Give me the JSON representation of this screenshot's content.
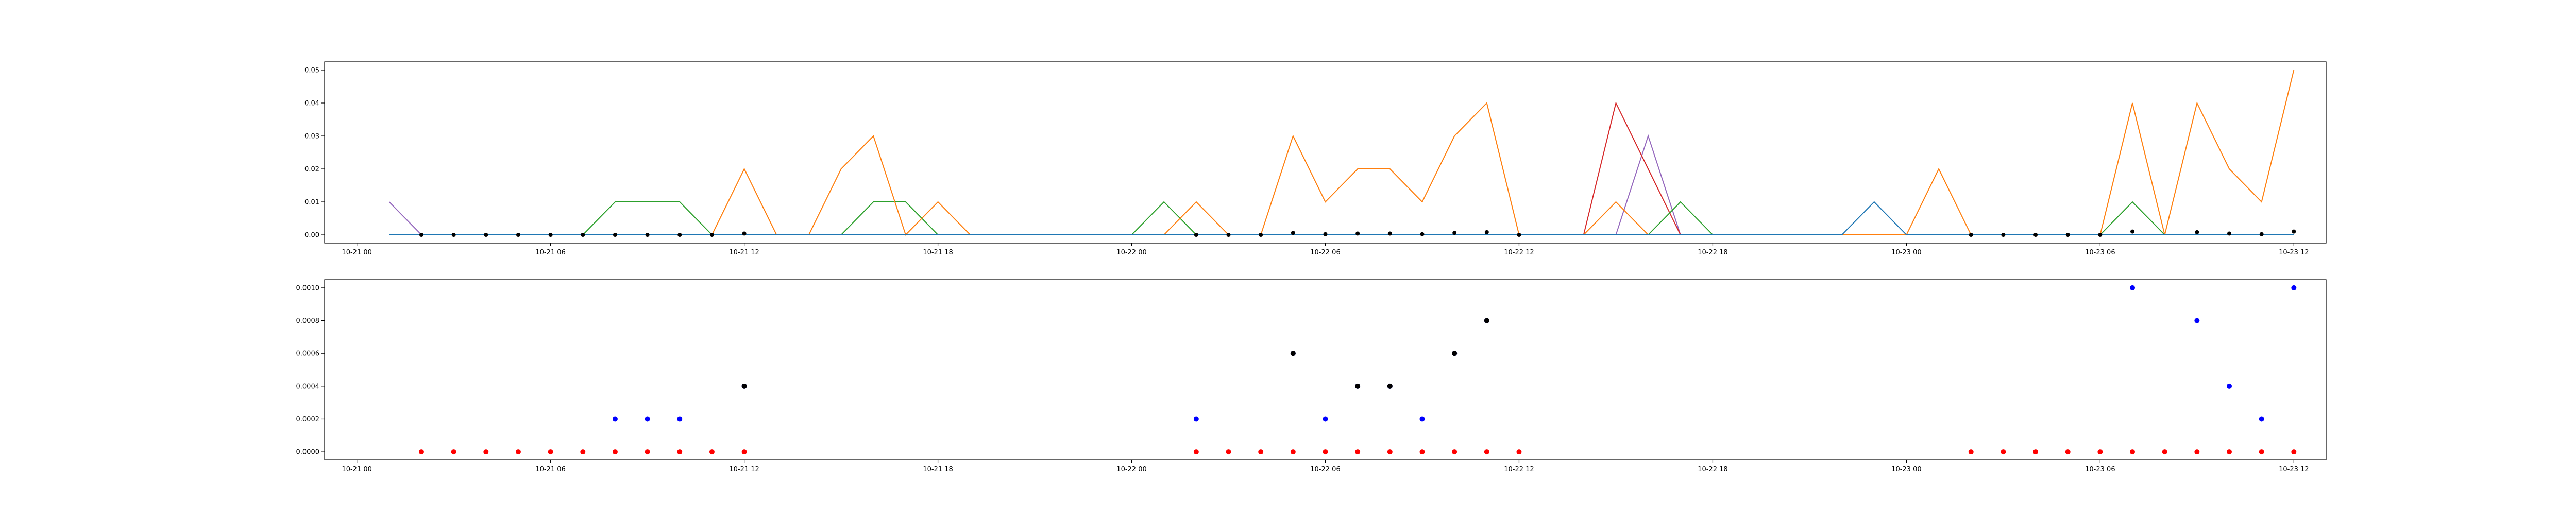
{
  "chart_data": [
    {
      "type": "line",
      "title": "",
      "xlabel": "",
      "ylabel": "",
      "x_range": [
        "2024-10-20 23:00",
        "2024-10-23 13:00"
      ],
      "ylim": [
        -0.0025,
        0.0525
      ],
      "grid": false,
      "x_ticks": [
        "10-21 00",
        "10-21 06",
        "10-21 12",
        "10-21 18",
        "10-22 00",
        "10-22 06",
        "10-22 12",
        "10-22 18",
        "10-23 00",
        "10-23 06",
        "10-23 12"
      ],
      "x_tick_times": [
        "2024-10-21 00:00",
        "2024-10-21 06:00",
        "2024-10-21 12:00",
        "2024-10-21 18:00",
        "2024-10-22 00:00",
        "2024-10-22 06:00",
        "2024-10-22 12:00",
        "2024-10-22 18:00",
        "2024-10-23 00:00",
        "2024-10-23 06:00",
        "2024-10-23 12:00"
      ],
      "y_ticks": [
        "0.00",
        "0.01",
        "0.02",
        "0.03",
        "0.04",
        "0.05"
      ],
      "y_tick_values": [
        0,
        0.01,
        0.02,
        0.03,
        0.04,
        0.05
      ],
      "x": [
        "2024-10-21 01:00",
        "2024-10-21 02:00",
        "2024-10-21 03:00",
        "2024-10-21 04:00",
        "2024-10-21 05:00",
        "2024-10-21 06:00",
        "2024-10-21 07:00",
        "2024-10-21 08:00",
        "2024-10-21 09:00",
        "2024-10-21 10:00",
        "2024-10-21 11:00",
        "2024-10-21 12:00",
        "2024-10-21 13:00",
        "2024-10-21 14:00",
        "2024-10-21 15:00",
        "2024-10-21 16:00",
        "2024-10-21 17:00",
        "2024-10-21 18:00",
        "2024-10-21 19:00",
        "2024-10-21 20:00",
        "2024-10-21 21:00",
        "2024-10-21 22:00",
        "2024-10-21 23:00",
        "2024-10-22 00:00",
        "2024-10-22 01:00",
        "2024-10-22 02:00",
        "2024-10-22 03:00",
        "2024-10-22 04:00",
        "2024-10-22 05:00",
        "2024-10-22 06:00",
        "2024-10-22 07:00",
        "2024-10-22 08:00",
        "2024-10-22 09:00",
        "2024-10-22 10:00",
        "2024-10-22 11:00",
        "2024-10-22 12:00",
        "2024-10-22 13:00",
        "2024-10-22 14:00",
        "2024-10-22 15:00",
        "2024-10-22 16:00",
        "2024-10-22 17:00",
        "2024-10-22 18:00",
        "2024-10-22 19:00",
        "2024-10-22 20:00",
        "2024-10-22 21:00",
        "2024-10-22 22:00",
        "2024-10-22 23:00",
        "2024-10-23 00:00",
        "2024-10-23 01:00",
        "2024-10-23 02:00",
        "2024-10-23 03:00",
        "2024-10-23 04:00",
        "2024-10-23 05:00",
        "2024-10-23 06:00",
        "2024-10-23 07:00",
        "2024-10-23 08:00",
        "2024-10-23 09:00",
        "2024-10-23 10:00",
        "2024-10-23 11:00",
        "2024-10-23 12:00"
      ],
      "series": [
        {
          "color": "#1f77b4",
          "values": [
            0,
            0,
            0,
            0,
            0,
            0,
            0,
            0,
            0,
            0,
            0,
            0,
            0,
            0,
            0,
            0,
            0,
            0,
            0,
            0,
            0,
            0,
            0,
            0,
            0,
            0,
            0,
            0,
            0,
            0,
            0,
            0,
            0,
            0,
            0,
            0,
            0,
            0,
            0,
            0,
            0,
            0,
            0,
            0,
            0,
            0,
            0.01,
            0,
            0,
            0,
            0,
            0,
            0,
            0,
            0,
            0,
            0,
            0,
            0,
            0
          ]
        },
        {
          "color": "#ff7f0e",
          "values": [
            0,
            0,
            0,
            0,
            0,
            0,
            0,
            0,
            0,
            0,
            0,
            0.02,
            0,
            0,
            0.02,
            0.03,
            0,
            0.01,
            0,
            0,
            0,
            0,
            0,
            0,
            0,
            0.01,
            0,
            0,
            0.03,
            0.01,
            0.02,
            0.02,
            0.01,
            0.03,
            0.04,
            0,
            0,
            0,
            0.01,
            0,
            0,
            0,
            0,
            0,
            0,
            0,
            0,
            0,
            0.02,
            0,
            0,
            0,
            0,
            0,
            0.04,
            0,
            0.04,
            0.02,
            0.01,
            0.05
          ]
        },
        {
          "color": "#2ca02c",
          "values": [
            0,
            0,
            0,
            0,
            0,
            0,
            0,
            0.01,
            0.01,
            0.01,
            0,
            0,
            0,
            0,
            0,
            0.01,
            0.01,
            0,
            0,
            0,
            0,
            0,
            0,
            0,
            0.01,
            0,
            0,
            0,
            0,
            0,
            0,
            0,
            0,
            0,
            0,
            0,
            0,
            0,
            0,
            0,
            0.01,
            0,
            0,
            0,
            0,
            0,
            0,
            0,
            0,
            0,
            0,
            0,
            0,
            0,
            0.01,
            0,
            0,
            0,
            0,
            0
          ]
        },
        {
          "color": "#d62728",
          "values": [
            0,
            0,
            0,
            0,
            0,
            0,
            0,
            0,
            0,
            0,
            0,
            0,
            0,
            0,
            0,
            0,
            0,
            0,
            0,
            0,
            0,
            0,
            0,
            0,
            0,
            0,
            0,
            0,
            0,
            0,
            0,
            0,
            0,
            0,
            0,
            0,
            0,
            0,
            0.04,
            0.02,
            0,
            0,
            0,
            0,
            0,
            0,
            0,
            0,
            0,
            0,
            0,
            0,
            0,
            0,
            0,
            0,
            0,
            0,
            0,
            0
          ]
        },
        {
          "color": "#9467bd",
          "values": [
            0.01,
            0,
            0,
            0,
            0,
            0,
            0,
            0,
            0,
            0,
            0,
            0,
            0,
            0,
            0,
            0,
            0,
            0,
            0,
            0,
            0,
            0,
            0,
            0,
            0,
            0,
            0,
            0,
            0,
            0,
            0,
            0,
            0,
            0,
            0,
            0,
            0,
            0,
            0,
            0.03,
            0,
            0,
            0,
            0,
            0,
            0,
            0,
            0,
            0,
            0,
            0,
            0,
            0,
            0,
            0,
            0,
            0,
            0,
            0,
            0
          ]
        }
      ],
      "markers": {
        "color": "#000000",
        "points": [
          {
            "x": "2024-10-21 02:00",
            "y": 0
          },
          {
            "x": "2024-10-21 03:00",
            "y": 0
          },
          {
            "x": "2024-10-21 04:00",
            "y": 0
          },
          {
            "x": "2024-10-21 05:00",
            "y": 0
          },
          {
            "x": "2024-10-21 06:00",
            "y": 0
          },
          {
            "x": "2024-10-21 07:00",
            "y": 0
          },
          {
            "x": "2024-10-21 08:00",
            "y": 0
          },
          {
            "x": "2024-10-21 09:00",
            "y": 0
          },
          {
            "x": "2024-10-21 10:00",
            "y": 0
          },
          {
            "x": "2024-10-21 11:00",
            "y": 0
          },
          {
            "x": "2024-10-21 12:00",
            "y": 0.0004
          },
          {
            "x": "2024-10-22 02:00",
            "y": 0
          },
          {
            "x": "2024-10-22 03:00",
            "y": 0
          },
          {
            "x": "2024-10-22 04:00",
            "y": 0
          },
          {
            "x": "2024-10-22 05:00",
            "y": 0.0006
          },
          {
            "x": "2024-10-22 06:00",
            "y": 0.0002
          },
          {
            "x": "2024-10-22 07:00",
            "y": 0.0004
          },
          {
            "x": "2024-10-22 08:00",
            "y": 0.0004
          },
          {
            "x": "2024-10-22 09:00",
            "y": 0.0002
          },
          {
            "x": "2024-10-22 10:00",
            "y": 0.0006
          },
          {
            "x": "2024-10-22 11:00",
            "y": 0.0008
          },
          {
            "x": "2024-10-22 12:00",
            "y": 0
          },
          {
            "x": "2024-10-23 02:00",
            "y": 0
          },
          {
            "x": "2024-10-23 03:00",
            "y": 0
          },
          {
            "x": "2024-10-23 04:00",
            "y": 0
          },
          {
            "x": "2024-10-23 05:00",
            "y": 0
          },
          {
            "x": "2024-10-23 06:00",
            "y": 0
          },
          {
            "x": "2024-10-23 07:00",
            "y": 0.001
          },
          {
            "x": "2024-10-23 09:00",
            "y": 0.0008
          },
          {
            "x": "2024-10-23 10:00",
            "y": 0.0004
          },
          {
            "x": "2024-10-23 11:00",
            "y": 0.0002
          },
          {
            "x": "2024-10-23 12:00",
            "y": 0.001
          }
        ]
      }
    },
    {
      "type": "scatter",
      "title": "",
      "xlabel": "",
      "ylabel": "",
      "x_range": [
        "2024-10-20 23:00",
        "2024-10-23 13:00"
      ],
      "ylim": [
        -5e-05,
        0.00105
      ],
      "grid": false,
      "x_ticks": [
        "10-21 00",
        "10-21 06",
        "10-21 12",
        "10-21 18",
        "10-22 00",
        "10-22 06",
        "10-22 12",
        "10-22 18",
        "10-23 00",
        "10-23 06",
        "10-23 12"
      ],
      "x_tick_times": [
        "2024-10-21 00:00",
        "2024-10-21 06:00",
        "2024-10-21 12:00",
        "2024-10-21 18:00",
        "2024-10-22 00:00",
        "2024-10-22 06:00",
        "2024-10-22 12:00",
        "2024-10-22 18:00",
        "2024-10-23 00:00",
        "2024-10-23 06:00",
        "2024-10-23 12:00"
      ],
      "y_ticks": [
        "0.0000",
        "0.0002",
        "0.0004",
        "0.0006",
        "0.0008",
        "0.0010"
      ],
      "y_tick_values": [
        0,
        0.0002,
        0.0004,
        0.0006,
        0.0008,
        0.001
      ],
      "series": [
        {
          "color": "#ff0000",
          "points": [
            {
              "x": "2024-10-21 02:00",
              "y": 0
            },
            {
              "x": "2024-10-21 03:00",
              "y": 0
            },
            {
              "x": "2024-10-21 04:00",
              "y": 0
            },
            {
              "x": "2024-10-21 05:00",
              "y": 0
            },
            {
              "x": "2024-10-21 06:00",
              "y": 0
            },
            {
              "x": "2024-10-21 07:00",
              "y": 0
            },
            {
              "x": "2024-10-21 08:00",
              "y": 0
            },
            {
              "x": "2024-10-21 09:00",
              "y": 0
            },
            {
              "x": "2024-10-21 10:00",
              "y": 0
            },
            {
              "x": "2024-10-21 11:00",
              "y": 0
            },
            {
              "x": "2024-10-21 12:00",
              "y": 0
            },
            {
              "x": "2024-10-22 02:00",
              "y": 0
            },
            {
              "x": "2024-10-22 03:00",
              "y": 0
            },
            {
              "x": "2024-10-22 04:00",
              "y": 0
            },
            {
              "x": "2024-10-22 05:00",
              "y": 0
            },
            {
              "x": "2024-10-22 06:00",
              "y": 0
            },
            {
              "x": "2024-10-22 07:00",
              "y": 0
            },
            {
              "x": "2024-10-22 08:00",
              "y": 0
            },
            {
              "x": "2024-10-22 09:00",
              "y": 0
            },
            {
              "x": "2024-10-22 10:00",
              "y": 0
            },
            {
              "x": "2024-10-22 11:00",
              "y": 0
            },
            {
              "x": "2024-10-22 12:00",
              "y": 0
            },
            {
              "x": "2024-10-23 02:00",
              "y": 0
            },
            {
              "x": "2024-10-23 03:00",
              "y": 0
            },
            {
              "x": "2024-10-23 04:00",
              "y": 0
            },
            {
              "x": "2024-10-23 05:00",
              "y": 0
            },
            {
              "x": "2024-10-23 06:00",
              "y": 0
            },
            {
              "x": "2024-10-23 07:00",
              "y": 0
            },
            {
              "x": "2024-10-23 08:00",
              "y": 0
            },
            {
              "x": "2024-10-23 09:00",
              "y": 0
            },
            {
              "x": "2024-10-23 10:00",
              "y": 0
            },
            {
              "x": "2024-10-23 11:00",
              "y": 0
            },
            {
              "x": "2024-10-23 12:00",
              "y": 0
            }
          ]
        },
        {
          "color": "#0000ff",
          "points": [
            {
              "x": "2024-10-21 08:00",
              "y": 0.0002
            },
            {
              "x": "2024-10-21 09:00",
              "y": 0.0002
            },
            {
              "x": "2024-10-21 10:00",
              "y": 0.0002
            },
            {
              "x": "2024-10-21 12:00",
              "y": 0.0004
            },
            {
              "x": "2024-10-22 02:00",
              "y": 0.0002
            },
            {
              "x": "2024-10-22 05:00",
              "y": 0.0006
            },
            {
              "x": "2024-10-22 06:00",
              "y": 0.0002
            },
            {
              "x": "2024-10-22 07:00",
              "y": 0.0004
            },
            {
              "x": "2024-10-22 08:00",
              "y": 0.0004
            },
            {
              "x": "2024-10-22 09:00",
              "y": 0.0002
            },
            {
              "x": "2024-10-22 10:00",
              "y": 0.0006
            },
            {
              "x": "2024-10-22 11:00",
              "y": 0.0008
            },
            {
              "x": "2024-10-23 07:00",
              "y": 0.001
            },
            {
              "x": "2024-10-23 09:00",
              "y": 0.0008
            },
            {
              "x": "2024-10-23 10:00",
              "y": 0.0004
            },
            {
              "x": "2024-10-23 11:00",
              "y": 0.0002
            },
            {
              "x": "2024-10-23 12:00",
              "y": 0.001
            }
          ]
        },
        {
          "color": "#000000",
          "points": [
            {
              "x": "2024-10-21 12:00",
              "y": 0.0004
            },
            {
              "x": "2024-10-22 05:00",
              "y": 0.0006
            },
            {
              "x": "2024-10-22 07:00",
              "y": 0.0004
            },
            {
              "x": "2024-10-22 08:00",
              "y": 0.0004
            },
            {
              "x": "2024-10-22 10:00",
              "y": 0.0006
            },
            {
              "x": "2024-10-22 11:00",
              "y": 0.0008
            }
          ]
        }
      ]
    }
  ]
}
